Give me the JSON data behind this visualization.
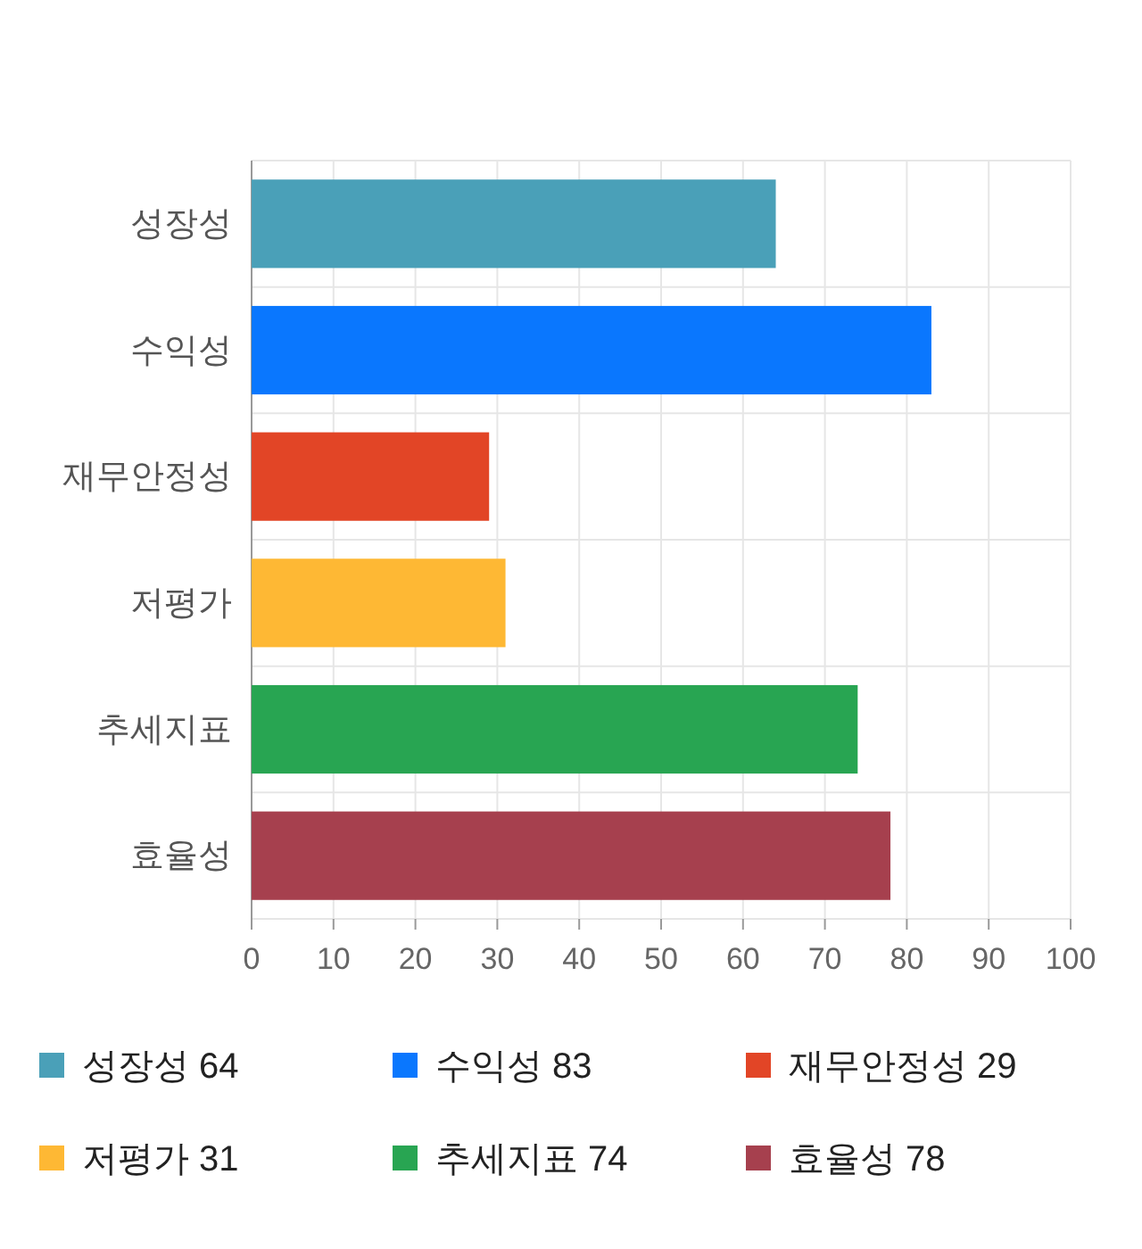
{
  "chart_data": {
    "type": "bar",
    "orientation": "horizontal",
    "stacked": true,
    "categories": [
      "성장성",
      "수익성",
      "재무안정성",
      "저평가",
      "추세지표",
      "효율성"
    ],
    "series": [
      {
        "name": "성장성 64",
        "color": "#4aa0b8",
        "values": [
          64,
          null,
          null,
          null,
          null,
          null
        ]
      },
      {
        "name": "수익성 83",
        "color": "#0a77fe",
        "values": [
          null,
          83,
          null,
          null,
          null,
          null
        ]
      },
      {
        "name": "재무안정성 29",
        "color": "#e24526",
        "values": [
          null,
          null,
          29,
          null,
          null,
          null
        ]
      },
      {
        "name": "저평가 31",
        "color": "#feb834",
        "values": [
          null,
          null,
          null,
          31,
          null,
          null
        ]
      },
      {
        "name": "추세지표 74",
        "color": "#28a552",
        "values": [
          null,
          null,
          null,
          null,
          74,
          null
        ]
      },
      {
        "name": "효율성 78",
        "color": "#a6404e",
        "values": [
          null,
          null,
          null,
          null,
          null,
          78
        ]
      }
    ],
    "xlim": [
      0,
      100
    ],
    "xticks": [
      0,
      10,
      20,
      30,
      40,
      50,
      60,
      70,
      80,
      90,
      100
    ],
    "grid": true,
    "legend": "bottom"
  }
}
